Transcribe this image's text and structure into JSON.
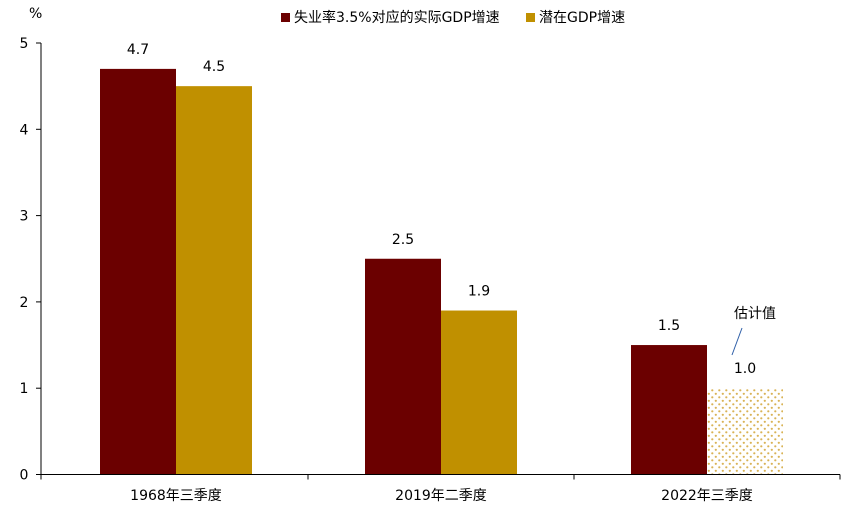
{
  "chart_data": {
    "type": "bar",
    "title": "",
    "xlabel": "",
    "ylabel": "%",
    "ylim": [
      0,
      5
    ],
    "yticks": [
      0,
      1,
      2,
      3,
      4,
      5
    ],
    "categories": [
      "1968年三季度",
      "2019年二季度",
      "2022年三季度"
    ],
    "series": [
      {
        "name": "失业率3.5%对应的实际GDP增速",
        "values": [
          4.7,
          2.5,
          1.5
        ],
        "color": "#6b0000"
      },
      {
        "name": "潜在GDP增速",
        "values": [
          4.5,
          1.9,
          1.0
        ],
        "color": "#c09000"
      }
    ],
    "data_labels": [
      [
        "4.7",
        "2.5",
        "1.5"
      ],
      [
        "4.5",
        "1.9",
        "1.0"
      ]
    ],
    "annotation": {
      "text": "估计值",
      "series": 1,
      "category": 2
    },
    "estimated": {
      "series": 1,
      "category": 2,
      "pattern": "dotted"
    },
    "legend_position": "top",
    "grid": false
  }
}
